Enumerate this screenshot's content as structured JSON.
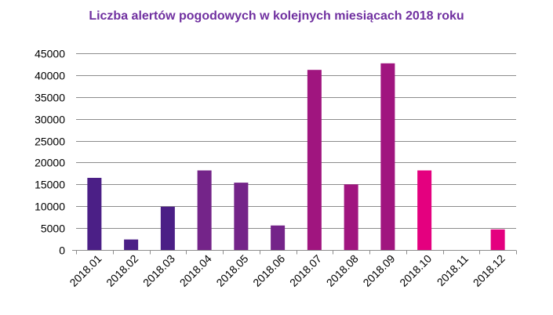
{
  "chart_data": {
    "type": "bar",
    "title": "Liczba alertów pogodowych w kolejnych miesiącach 2018 roku",
    "xlabel": "",
    "ylabel": "",
    "categories": [
      "2018.01",
      "2018.02",
      "2018.03",
      "2018.04",
      "2018.05",
      "2018.06",
      "2018.07",
      "2018.08",
      "2018.09",
      "2018.10",
      "2018.11",
      "2018.12"
    ],
    "values": [
      16500,
      2400,
      9900,
      18200,
      15400,
      5600,
      41200,
      15000,
      42700,
      18200,
      0,
      4700
    ],
    "bar_colors": [
      "#4b1f86",
      "#4b1f86",
      "#4b1f86",
      "#742489",
      "#742489",
      "#742489",
      "#a0157f",
      "#a0157f",
      "#a0157f",
      "#e4007f",
      "#e4007f",
      "#e4007f"
    ],
    "ylim": [
      0,
      45000
    ],
    "yticks": [
      0,
      5000,
      10000,
      15000,
      20000,
      25000,
      30000,
      35000,
      40000,
      45000
    ],
    "grid": true,
    "legend": "none"
  },
  "colors": {
    "title": "#7030a0",
    "grid": "#8c8c8c"
  }
}
